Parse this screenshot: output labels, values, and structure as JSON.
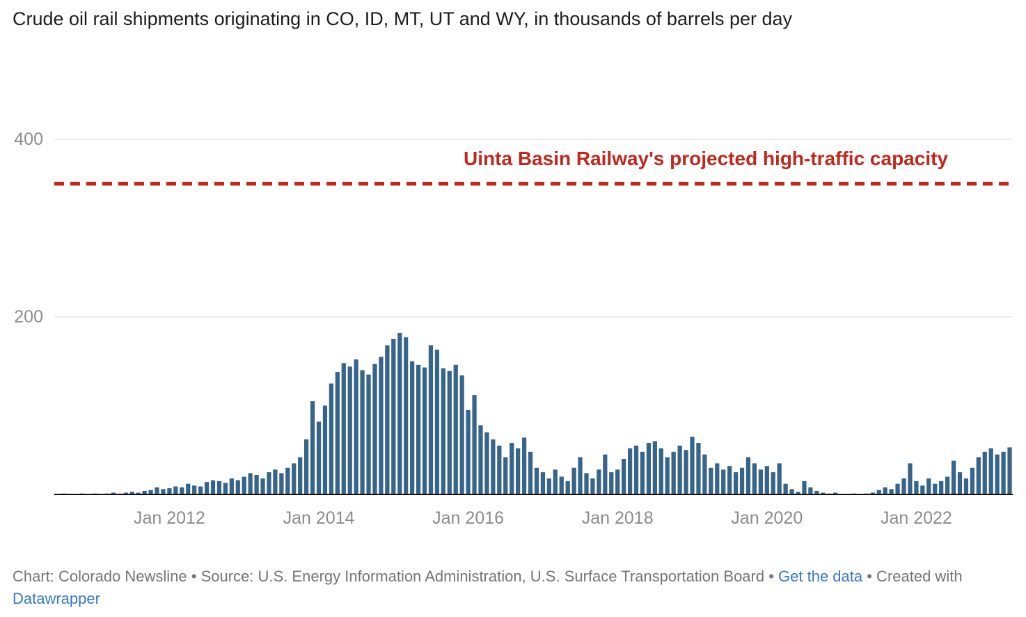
{
  "title": "Crude oil rail shipments originating in CO, ID, MT, UT and WY, in thousands of barrels per day",
  "annotation": {
    "capacity_label": "Uinta Basin Railway's projected high-traffic capacity"
  },
  "footer": {
    "text1": "Chart: Colorado Newsline • Source: U.S. Energy Information Administration, U.S. Surface Transportation Board • ",
    "get_data_link": "Get the data",
    "text2": " • Created with ",
    "datawrapper_link": "Datawrapper"
  },
  "colors": {
    "bar": "#36648b",
    "reference_red": "#c0281c",
    "gridline": "#dcdcdc",
    "axis_label": "#8c8c8c",
    "baseline": "#111111",
    "link_blue": "#3579c8"
  },
  "chart_data": {
    "type": "bar",
    "title": "Crude oil rail shipments originating in CO, ID, MT, UT and WY, in thousands of barrels per day",
    "ylabel": "thousands of barrels per day",
    "xlabel": "",
    "frequency": "monthly",
    "start_month": "2010-07",
    "end_month": "2023-04",
    "ylim": [
      0,
      440
    ],
    "y_ticks": [
      200,
      400
    ],
    "x_tick_labels": [
      "Jan 2012",
      "Jan 2014",
      "Jan 2016",
      "Jan 2018",
      "Jan 2020",
      "Jan 2022"
    ],
    "grid": "horizontal",
    "reference_line": {
      "label": "Uinta Basin Railway's projected high-traffic capacity",
      "value": 350,
      "style": "dashed",
      "color": "#c0281c"
    },
    "values": [
      0.5,
      1,
      0.5,
      0,
      1,
      0.5,
      1,
      0.5,
      1,
      2,
      1,
      2,
      3,
      2,
      4,
      5,
      8,
      6,
      7,
      9,
      8,
      12,
      10,
      9,
      14,
      16,
      15,
      13,
      18,
      16,
      20,
      24,
      22,
      18,
      25,
      28,
      24,
      30,
      35,
      42,
      62,
      105,
      82,
      100,
      125,
      138,
      148,
      144,
      152,
      140,
      135,
      147,
      155,
      168,
      175,
      182,
      177,
      150,
      146,
      143,
      168,
      163,
      142,
      139,
      146,
      134,
      95,
      112,
      78,
      70,
      62,
      55,
      42,
      58,
      52,
      64,
      48,
      30,
      25,
      18,
      28,
      20,
      15,
      30,
      42,
      24,
      18,
      28,
      45,
      25,
      28,
      40,
      52,
      55,
      48,
      58,
      60,
      52,
      42,
      48,
      55,
      50,
      65,
      58,
      45,
      30,
      35,
      28,
      32,
      25,
      30,
      42,
      35,
      28,
      32,
      25,
      35,
      12,
      6,
      3,
      15,
      8,
      4,
      2,
      1,
      2,
      0,
      0,
      1,
      0,
      1,
      2,
      5,
      8,
      6,
      12,
      18,
      35,
      15,
      10,
      18,
      12,
      15,
      20,
      38,
      25,
      18,
      30,
      42,
      48,
      52,
      45,
      48,
      53
    ]
  }
}
